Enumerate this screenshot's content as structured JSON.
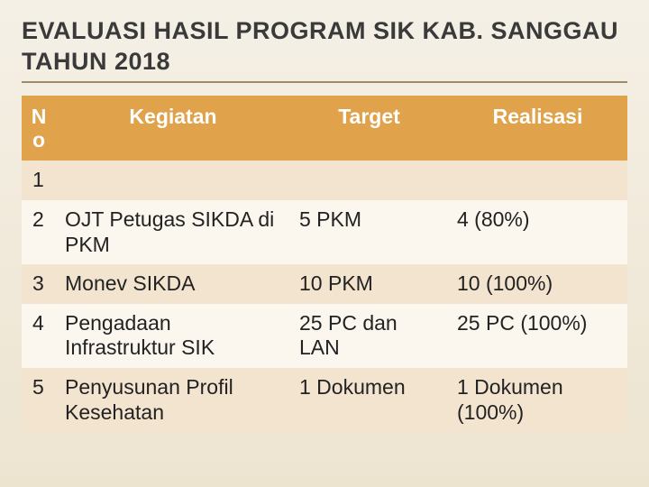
{
  "title": "EVALUASI HASIL PROGRAM SIK KAB. SANGGAU TAHUN 2018",
  "table": {
    "columns": {
      "no": "N o",
      "kegiatan": "Kegiatan",
      "target": "Target",
      "realisasi": "Realisasi"
    },
    "rows": [
      {
        "no": "1",
        "kegiatan": "",
        "target": "",
        "realisasi": ""
      },
      {
        "no": "2",
        "kegiatan": "OJT Petugas SIKDA di PKM",
        "target": "5 PKM",
        "realisasi": "4 (80%)"
      },
      {
        "no": "3",
        "kegiatan": "Monev SIKDA",
        "target": "10 PKM",
        "realisasi": "10 (100%)"
      },
      {
        "no": "4",
        "kegiatan": "Pengadaan Infrastruktur SIK",
        "target": "25 PC dan LAN",
        "realisasi": "25 PC (100%)"
      },
      {
        "no": "5",
        "kegiatan": "Penyusunan Profil Kesehatan",
        "target": "1 Dokumen",
        "realisasi": "1 Dokumen (100%)"
      }
    ],
    "header_bg": "#e0a24a",
    "header_fg": "#ffffff",
    "row_odd_bg": "#f3e4cf",
    "row_even_bg": "#fbf7ef"
  }
}
